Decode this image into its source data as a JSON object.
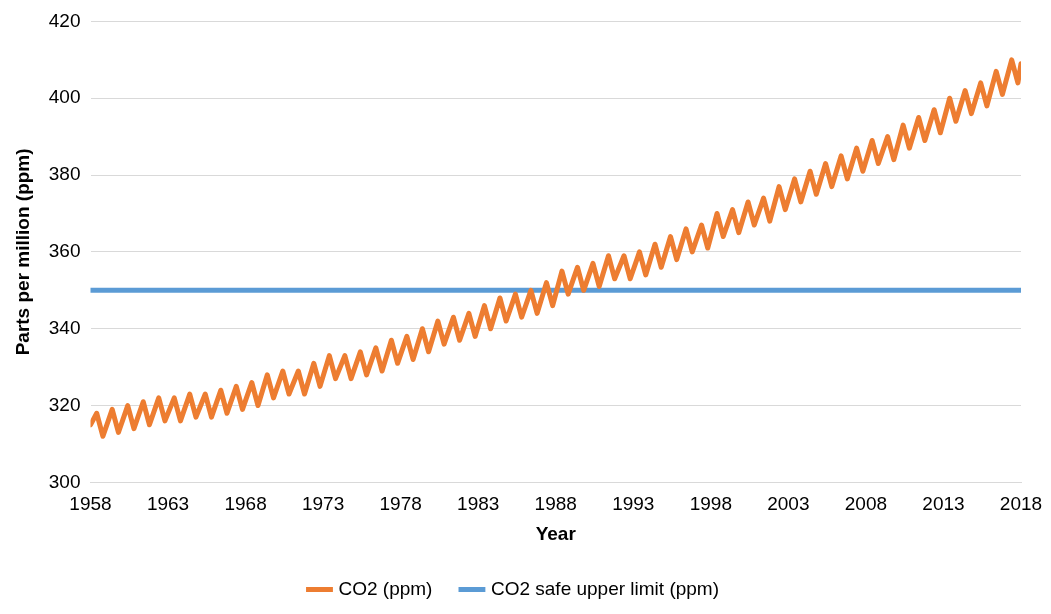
{
  "chart_data": {
    "type": "line",
    "xlabel": "Year",
    "ylabel": "Parts per million (ppm)",
    "xlim": [
      1958,
      2018
    ],
    "xticks": [
      1958,
      1963,
      1968,
      1973,
      1978,
      1983,
      1988,
      1993,
      1998,
      2003,
      2008,
      2013,
      2018
    ],
    "ylim": [
      300,
      420
    ],
    "yticks": [
      300,
      320,
      340,
      360,
      380,
      400,
      420
    ],
    "grid": "y",
    "legend": "bottom",
    "marker": "none",
    "series": [
      {
        "name": "CO2 (ppm)",
        "color": "#ed7d31",
        "x": [
          1958,
          1958.4,
          1958.8,
          1959.4,
          1959.8,
          1960.4,
          1960.8,
          1961.4,
          1961.8,
          1962.4,
          1962.8,
          1963.4,
          1963.8,
          1964.4,
          1964.8,
          1965.4,
          1965.8,
          1966.4,
          1966.8,
          1967.4,
          1967.8,
          1968.4,
          1968.8,
          1969.4,
          1969.8,
          1970.4,
          1970.8,
          1971.4,
          1971.8,
          1972.4,
          1972.8,
          1973.4,
          1973.8,
          1974.4,
          1974.8,
          1975.4,
          1975.8,
          1976.4,
          1976.8,
          1977.4,
          1977.8,
          1978.4,
          1978.8,
          1979.4,
          1979.8,
          1980.4,
          1980.8,
          1981.4,
          1981.8,
          1982.4,
          1982.8,
          1983.4,
          1983.8,
          1984.4,
          1984.8,
          1985.4,
          1985.8,
          1986.4,
          1986.8,
          1987.4,
          1987.8,
          1988.4,
          1988.8,
          1989.4,
          1989.8,
          1990.4,
          1990.8,
          1991.4,
          1991.8,
          1992.4,
          1992.8,
          1993.4,
          1993.8,
          1994.4,
          1994.8,
          1995.4,
          1995.8,
          1996.4,
          1996.8,
          1997.4,
          1997.8,
          1998.4,
          1998.8,
          1999.4,
          1999.8,
          2000.4,
          2000.8,
          2001.4,
          2001.8,
          2002.4,
          2002.8,
          2003.4,
          2003.8,
          2004.4,
          2004.8,
          2005.4,
          2005.8,
          2006.4,
          2006.8,
          2007.4,
          2007.8,
          2008.4,
          2008.8,
          2009.4,
          2009.8,
          2010.4,
          2010.8,
          2011.4,
          2011.8,
          2012.4,
          2012.8,
          2013.4,
          2013.8,
          2014.4,
          2014.8,
          2015.4,
          2015.8,
          2016.4,
          2016.8,
          2017.4,
          2017.8,
          2018
        ],
        "values": [
          315,
          318,
          312,
          319,
          313,
          320,
          314,
          321,
          315,
          322,
          316,
          322,
          316,
          323,
          317,
          323,
          317,
          324,
          318,
          325,
          319,
          326,
          320,
          328,
          322,
          329,
          323,
          329,
          323,
          331,
          325,
          333,
          327,
          333,
          327,
          334,
          328,
          335,
          329,
          337,
          331,
          338,
          332,
          340,
          334,
          342,
          336,
          343,
          337,
          344,
          338,
          346,
          340,
          348,
          342,
          349,
          343,
          350,
          344,
          352,
          346,
          355,
          349,
          356,
          350,
          357,
          351,
          359,
          353,
          359,
          353,
          360,
          354,
          362,
          356,
          364,
          358,
          366,
          360,
          367,
          361,
          370,
          364,
          371,
          365,
          373,
          367,
          374,
          368,
          377,
          371,
          379,
          373,
          381,
          375,
          383,
          377,
          385,
          379,
          387,
          381,
          389,
          383,
          390,
          384,
          393,
          387,
          395,
          389,
          397,
          391,
          400,
          394,
          402,
          396,
          404,
          398,
          407,
          401,
          410,
          404,
          409
        ]
      },
      {
        "name": "CO2 safe upper limit (ppm)",
        "color": "#5b9bd5",
        "x": [
          1958,
          2018
        ],
        "values": [
          350,
          350
        ]
      }
    ]
  }
}
